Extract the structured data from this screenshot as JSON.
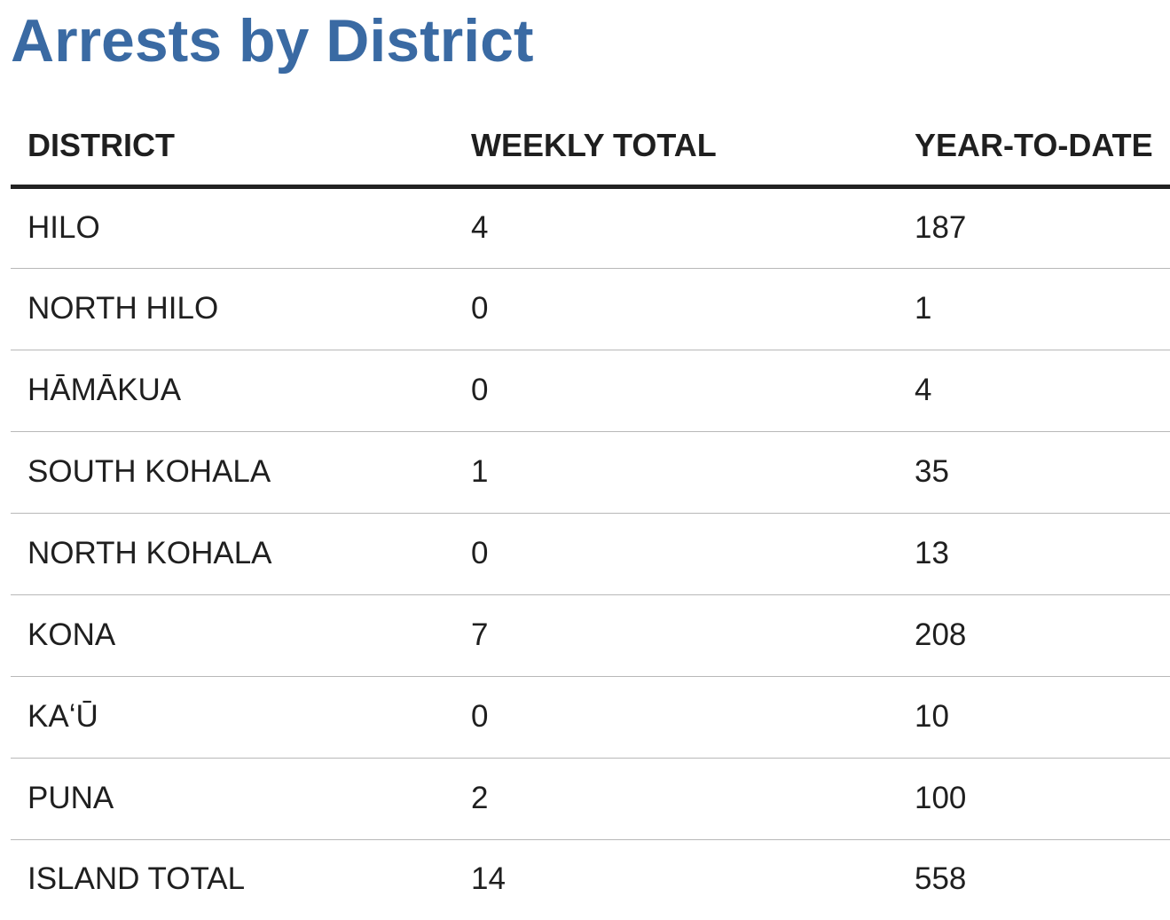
{
  "chart_data": {
    "type": "table",
    "title": "Arrests by District",
    "columns": [
      "DISTRICT",
      "WEEKLY TOTAL",
      "YEAR-TO-DATE"
    ],
    "rows": [
      [
        "HILO",
        "4",
        "187"
      ],
      [
        "NORTH HILO",
        "0",
        "1"
      ],
      [
        "HĀMĀKUA",
        "0",
        "4"
      ],
      [
        "SOUTH KOHALA",
        "1",
        "35"
      ],
      [
        "NORTH KOHALA",
        "0",
        "13"
      ],
      [
        "KONA",
        "7",
        "208"
      ],
      [
        "KAʻŪ",
        "0",
        "10"
      ],
      [
        "PUNA",
        "2",
        "100"
      ],
      [
        "ISLAND TOTAL",
        "14",
        "558"
      ]
    ]
  },
  "colors": {
    "title": "#3a6aa3",
    "text": "#1f1f1f",
    "header_rule": "#222222",
    "row_rule": "#b8b8b8"
  }
}
